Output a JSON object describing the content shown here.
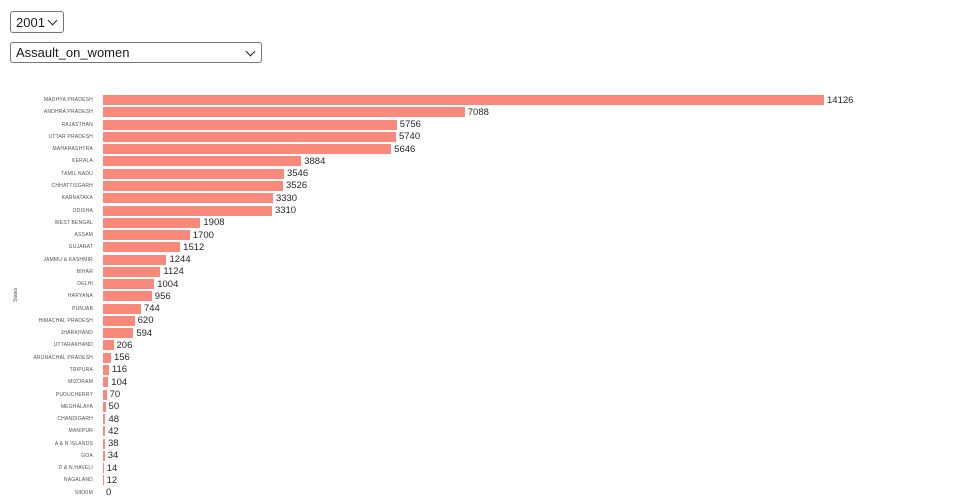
{
  "controls": {
    "year_select": {
      "value": "2001",
      "options": [
        "2001"
      ]
    },
    "category_select": {
      "value": "Assault_on_women",
      "options": [
        "Assault_on_women"
      ]
    }
  },
  "chart_data": {
    "type": "bar",
    "orientation": "horizontal",
    "title": "",
    "xlabel": "",
    "ylabel": "States",
    "xlim": [
      0,
      14126
    ],
    "grid": false,
    "legend": false,
    "value_labels": true,
    "bar_color": "#f9897b",
    "categories": [
      "MADHYA PRADESH",
      "ANDHRA PRADESH",
      "RAJASTHAN",
      "UTTAR PRADESH",
      "MAHARASHTRA",
      "KERALA",
      "TAMIL NADU",
      "CHHATTISGARH",
      "KARNATAKA",
      "ODISHA",
      "WEST BENGAL",
      "ASSAM",
      "GUJARAT",
      "JAMMU & KASHMIR",
      "BIHAR",
      "DELHI",
      "HARYANA",
      "PUNJAB",
      "HIMACHAL PRADESH",
      "JHARKHAND",
      "UTTARAKHAND",
      "ARUNACHAL PRADESH",
      "TRIPURA",
      "MIZORAM",
      "PUDUCHERRY",
      "MEGHALAYA",
      "CHANDIGARH",
      "MANIPUR",
      "A & N ISLANDS",
      "GOA",
      "D & N HAVELI",
      "NAGALAND",
      "SIKKIM"
    ],
    "values": [
      14126,
      7088,
      5756,
      5740,
      5646,
      3884,
      3546,
      3526,
      3330,
      3310,
      1908,
      1700,
      1512,
      1244,
      1124,
      1004,
      956,
      744,
      620,
      594,
      206,
      156,
      116,
      104,
      70,
      50,
      48,
      42,
      38,
      34,
      14,
      12,
      0
    ]
  }
}
